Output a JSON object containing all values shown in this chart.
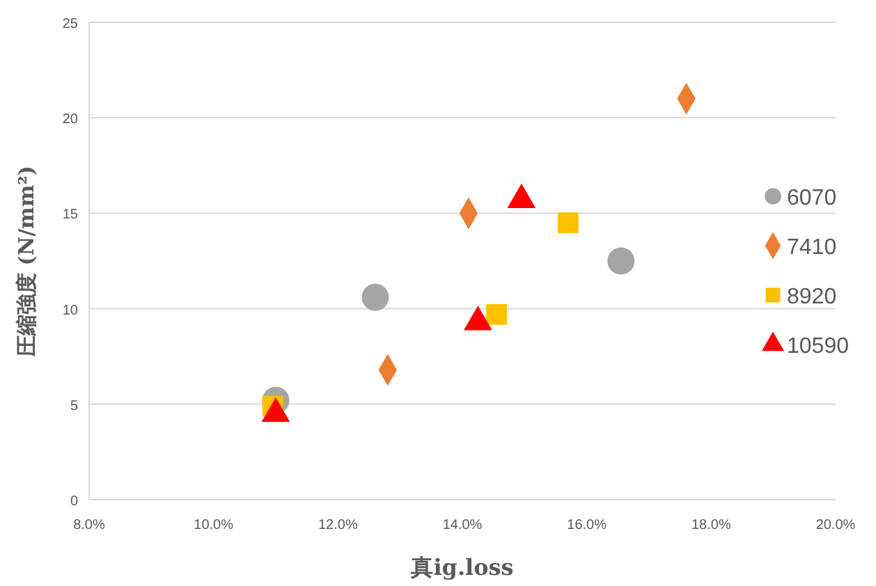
{
  "chart_data": {
    "type": "scatter",
    "xlabel": "真ig.loss",
    "ylabel": "圧縮強度 (N/mm²)",
    "xlim": [
      8,
      20
    ],
    "ylim": [
      0,
      25
    ],
    "xticks": [
      {
        "value": 8,
        "label": "8.0%"
      },
      {
        "value": 10,
        "label": "10.0%"
      },
      {
        "value": 12,
        "label": "12.0%"
      },
      {
        "value": 14,
        "label": "14.0%"
      },
      {
        "value": 16,
        "label": "16.0%"
      },
      {
        "value": 18,
        "label": "18.0%"
      },
      {
        "value": 20,
        "label": "20.0%"
      }
    ],
    "yticks": [
      0,
      5,
      10,
      15,
      20,
      25
    ],
    "grid": "y",
    "legend": "right",
    "series": [
      {
        "name": "6070",
        "color": "#a5a5a5",
        "marker": "circle",
        "x": [
          11.0,
          12.6,
          16.55
        ],
        "values": [
          5.2,
          10.6,
          12.5
        ]
      },
      {
        "name": "7410",
        "color": "#ed7d31",
        "marker": "diamond",
        "x": [
          12.8,
          14.1,
          17.6
        ],
        "values": [
          6.8,
          15.0,
          21.0
        ]
      },
      {
        "name": "8920",
        "color": "#ffc000",
        "marker": "square",
        "x": [
          10.95,
          14.55,
          15.7
        ],
        "values": [
          4.9,
          9.7,
          14.5
        ]
      },
      {
        "name": "10590",
        "color": "#ff0000",
        "marker": "triangle",
        "x": [
          11.0,
          14.25,
          14.95
        ],
        "values": [
          4.5,
          9.3,
          15.7
        ]
      }
    ]
  }
}
